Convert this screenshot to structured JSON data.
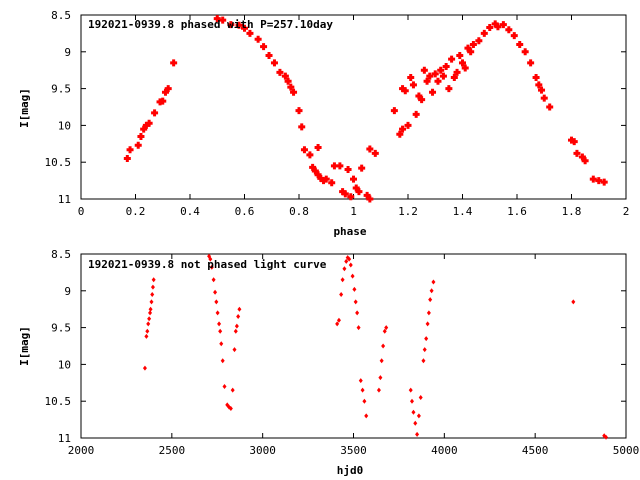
{
  "chart_data": [
    {
      "type": "scatter",
      "title": "192021-0939.8 phased with P=257.10day",
      "xlabel": "phase",
      "ylabel": "I[mag]",
      "xlim": [
        0,
        2
      ],
      "ylim": [
        8.5,
        11
      ],
      "y_inverted": true,
      "xticks": [
        "0",
        "0.2",
        "0.4",
        "0.6",
        "0.8",
        "1",
        "1.2",
        "1.4",
        "1.6",
        "1.8",
        "2"
      ],
      "yticks": [
        "8.5",
        "9",
        "9.5",
        "10",
        "10.5",
        "11"
      ],
      "grid": false,
      "legend": "none",
      "color": "#ff0000",
      "series": [
        {
          "points": [
            [
              0.17,
              10.45
            ],
            [
              0.18,
              10.33
            ],
            [
              0.21,
              10.27
            ],
            [
              0.22,
              10.15
            ],
            [
              0.23,
              10.05
            ],
            [
              0.24,
              10.0
            ],
            [
              0.25,
              9.97
            ],
            [
              0.27,
              9.83
            ],
            [
              0.29,
              9.68
            ],
            [
              0.3,
              9.67
            ],
            [
              0.31,
              9.55
            ],
            [
              0.32,
              9.5
            ],
            [
              0.34,
              9.15
            ],
            [
              0.5,
              8.55
            ],
            [
              0.52,
              8.57
            ],
            [
              0.55,
              8.63
            ],
            [
              0.58,
              8.64
            ],
            [
              0.6,
              8.68
            ],
            [
              0.62,
              8.75
            ],
            [
              0.65,
              8.83
            ],
            [
              0.67,
              8.93
            ],
            [
              0.69,
              9.05
            ],
            [
              0.71,
              9.15
            ],
            [
              0.73,
              9.28
            ],
            [
              0.75,
              9.33
            ],
            [
              0.76,
              9.4
            ],
            [
              0.77,
              9.48
            ],
            [
              0.78,
              9.55
            ],
            [
              0.8,
              9.8
            ],
            [
              0.81,
              10.02
            ],
            [
              0.82,
              10.33
            ],
            [
              0.84,
              10.4
            ],
            [
              0.85,
              10.57
            ],
            [
              0.86,
              10.62
            ],
            [
              0.87,
              10.67
            ],
            [
              0.88,
              10.72
            ],
            [
              0.87,
              10.3
            ],
            [
              0.89,
              10.75
            ],
            [
              0.9,
              10.73
            ],
            [
              0.92,
              10.78
            ],
            [
              0.93,
              10.55
            ],
            [
              0.95,
              10.55
            ],
            [
              0.96,
              10.9
            ],
            [
              0.97,
              10.93
            ],
            [
              0.98,
              10.6
            ],
            [
              0.99,
              10.97
            ],
            [
              1.0,
              10.73
            ],
            [
              1.01,
              10.85
            ],
            [
              1.02,
              10.9
            ],
            [
              1.03,
              10.58
            ],
            [
              1.05,
              10.95
            ],
            [
              1.06,
              11.0
            ],
            [
              1.06,
              10.32
            ],
            [
              1.08,
              10.38
            ],
            [
              1.15,
              9.8
            ],
            [
              1.17,
              10.12
            ],
            [
              1.18,
              10.05
            ],
            [
              1.18,
              9.5
            ],
            [
              1.19,
              9.53
            ],
            [
              1.2,
              10.0
            ],
            [
              1.21,
              9.35
            ],
            [
              1.22,
              9.45
            ],
            [
              1.23,
              9.85
            ],
            [
              1.24,
              9.6
            ],
            [
              1.25,
              9.65
            ],
            [
              1.26,
              9.25
            ],
            [
              1.27,
              9.4
            ],
            [
              1.28,
              9.33
            ],
            [
              1.29,
              9.55
            ],
            [
              1.3,
              9.3
            ],
            [
              1.31,
              9.4
            ],
            [
              1.32,
              9.25
            ],
            [
              1.33,
              9.33
            ],
            [
              1.34,
              9.2
            ],
            [
              1.35,
              9.5
            ],
            [
              1.36,
              9.1
            ],
            [
              1.37,
              9.35
            ],
            [
              1.38,
              9.28
            ],
            [
              1.39,
              9.05
            ],
            [
              1.4,
              9.15
            ],
            [
              1.41,
              9.22
            ],
            [
              1.42,
              8.95
            ],
            [
              1.43,
              9.0
            ],
            [
              1.44,
              8.9
            ],
            [
              1.46,
              8.85
            ],
            [
              1.48,
              8.75
            ],
            [
              1.5,
              8.67
            ],
            [
              1.52,
              8.62
            ],
            [
              1.53,
              8.66
            ],
            [
              1.55,
              8.63
            ],
            [
              1.57,
              8.7
            ],
            [
              1.59,
              8.78
            ],
            [
              1.61,
              8.9
            ],
            [
              1.63,
              9.0
            ],
            [
              1.65,
              9.15
            ],
            [
              1.67,
              9.35
            ],
            [
              1.68,
              9.45
            ],
            [
              1.69,
              9.52
            ],
            [
              1.7,
              9.63
            ],
            [
              1.72,
              9.75
            ],
            [
              1.8,
              10.2
            ],
            [
              1.81,
              10.22
            ],
            [
              1.82,
              10.38
            ],
            [
              1.84,
              10.43
            ],
            [
              1.85,
              10.48
            ],
            [
              1.88,
              10.73
            ],
            [
              1.9,
              10.75
            ],
            [
              1.92,
              10.77
            ]
          ]
        }
      ]
    },
    {
      "type": "scatter",
      "title": "192021-0939.8 not phased light curve",
      "xlabel": "hjd0",
      "ylabel": "I[mag]",
      "xlim": [
        2000,
        5000
      ],
      "ylim": [
        8.5,
        11
      ],
      "y_inverted": true,
      "xticks": [
        "2000",
        "2500",
        "3000",
        "3500",
        "4000",
        "4500",
        "5000"
      ],
      "yticks": [
        "8.5",
        "9",
        "9.5",
        "10",
        "10.5",
        "11"
      ],
      "grid": false,
      "legend": "none",
      "color": "#ff0000",
      "series": [
        {
          "points": [
            [
              2352,
              10.05
            ],
            [
              2360,
              9.62
            ],
            [
              2365,
              9.55
            ],
            [
              2370,
              9.45
            ],
            [
              2375,
              9.38
            ],
            [
              2380,
              9.3
            ],
            [
              2383,
              9.25
            ],
            [
              2388,
              9.15
            ],
            [
              2392,
              9.05
            ],
            [
              2396,
              8.95
            ],
            [
              2400,
              8.85
            ],
            [
              2705,
              8.53
            ],
            [
              2712,
              8.57
            ],
            [
              2720,
              8.68
            ],
            [
              2730,
              8.85
            ],
            [
              2738,
              9.02
            ],
            [
              2745,
              9.15
            ],
            [
              2752,
              9.3
            ],
            [
              2760,
              9.45
            ],
            [
              2766,
              9.55
            ],
            [
              2772,
              9.72
            ],
            [
              2780,
              9.95
            ],
            [
              2790,
              10.3
            ],
            [
              2805,
              10.55
            ],
            [
              2815,
              10.58
            ],
            [
              2825,
              10.6
            ],
            [
              2835,
              10.35
            ],
            [
              2845,
              9.8
            ],
            [
              2852,
              9.55
            ],
            [
              2858,
              9.48
            ],
            [
              2865,
              9.35
            ],
            [
              2872,
              9.25
            ],
            [
              3410,
              9.45
            ],
            [
              3420,
              9.4
            ],
            [
              3432,
              9.05
            ],
            [
              3440,
              8.85
            ],
            [
              3450,
              8.7
            ],
            [
              3460,
              8.6
            ],
            [
              3468,
              8.55
            ],
            [
              3476,
              8.57
            ],
            [
              3485,
              8.65
            ],
            [
              3495,
              8.8
            ],
            [
              3505,
              8.98
            ],
            [
              3512,
              9.15
            ],
            [
              3520,
              9.3
            ],
            [
              3528,
              9.5
            ],
            [
              3540,
              10.22
            ],
            [
              3550,
              10.35
            ],
            [
              3560,
              10.5
            ],
            [
              3570,
              10.7
            ],
            [
              3640,
              10.35
            ],
            [
              3648,
              10.18
            ],
            [
              3655,
              9.95
            ],
            [
              3663,
              9.75
            ],
            [
              3672,
              9.55
            ],
            [
              3680,
              9.5
            ],
            [
              3815,
              10.35
            ],
            [
              3822,
              10.5
            ],
            [
              3830,
              10.65
            ],
            [
              3840,
              10.8
            ],
            [
              3850,
              10.95
            ],
            [
              3860,
              10.7
            ],
            [
              3870,
              10.45
            ],
            [
              3885,
              9.95
            ],
            [
              3892,
              9.8
            ],
            [
              3900,
              9.65
            ],
            [
              3908,
              9.45
            ],
            [
              3915,
              9.3
            ],
            [
              3922,
              9.12
            ],
            [
              3930,
              9.0
            ],
            [
              3940,
              8.88
            ],
            [
              4710,
              9.15
            ],
            [
              4880,
              10.97
            ],
            [
              4890,
              10.99
            ]
          ]
        }
      ]
    }
  ]
}
